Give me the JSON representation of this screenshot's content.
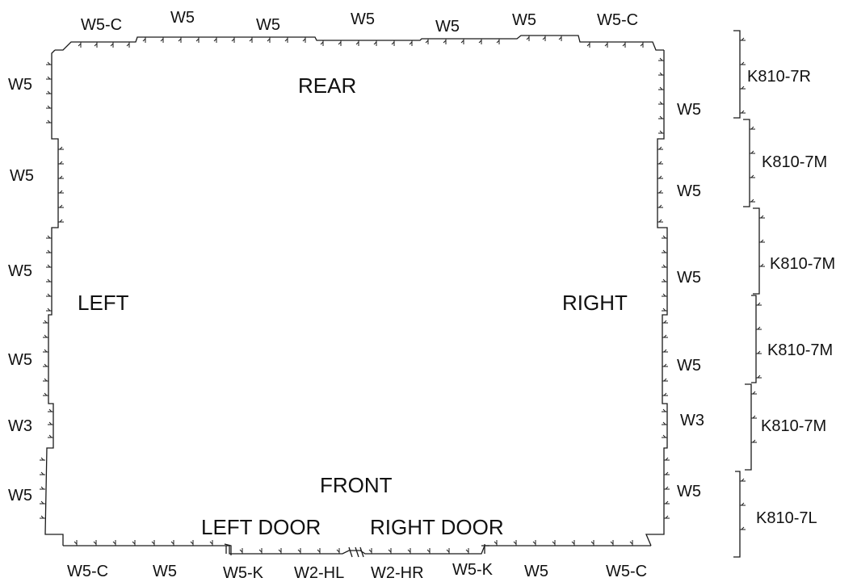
{
  "colors": {
    "line": "#1a1a1a",
    "text": "#111111",
    "background": "#ffffff"
  },
  "sides": {
    "rear": "REAR",
    "front": "FRONT",
    "left": "LEFT",
    "right": "RIGHT",
    "left_door": "LEFT DOOR",
    "right_door": "RIGHT DOOR"
  },
  "top_panels": [
    "W5-C",
    "W5",
    "W5",
    "W5",
    "W5",
    "W5",
    "W5-C"
  ],
  "bottom_panels": [
    "W5-C",
    "W5",
    "W5-K",
    "W2-HL",
    "W2-HR",
    "W5-K",
    "W5",
    "W5-C"
  ],
  "left_panels": [
    "W5",
    "W5",
    "W5",
    "W5",
    "W3",
    "W5"
  ],
  "right_panels": [
    "W5",
    "W5",
    "W5",
    "W5",
    "W3",
    "W5"
  ],
  "kits": [
    "K810-7R",
    "K810-7M",
    "K810-7M",
    "K810-7M",
    "K810-7M",
    "K810-7L"
  ]
}
